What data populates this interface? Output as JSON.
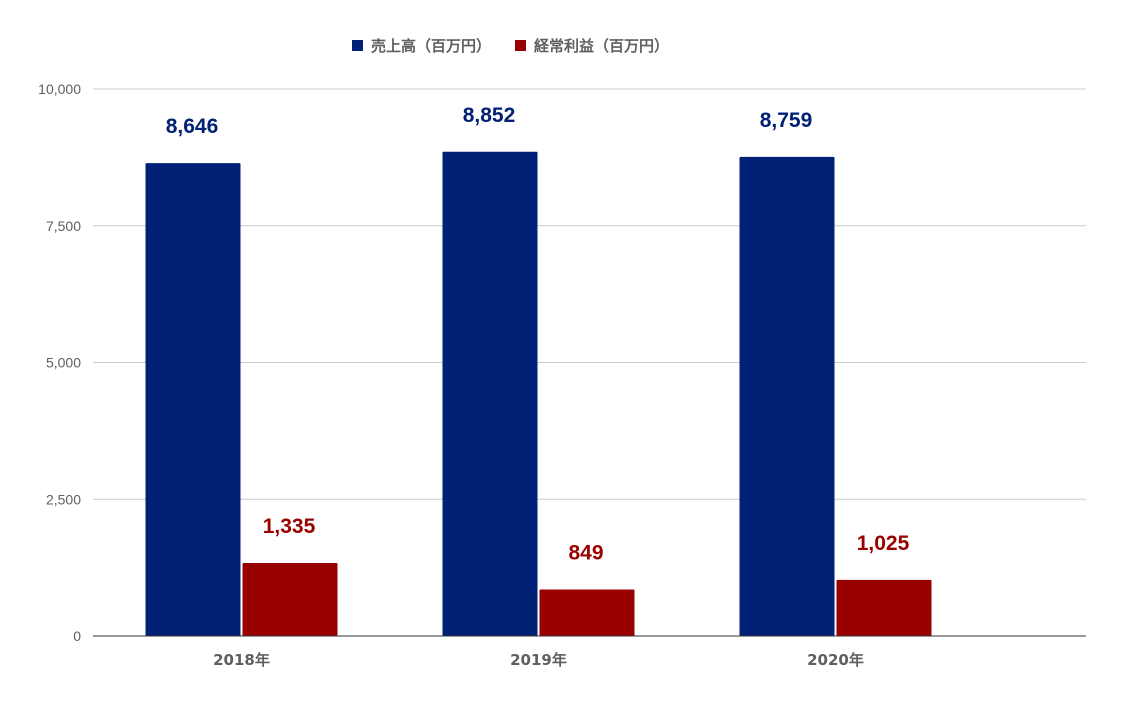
{
  "chart_data": {
    "type": "bar",
    "title": "",
    "xlabel": "",
    "ylabel": "",
    "categories": [
      "2018年",
      "2019年",
      "2020年"
    ],
    "series": [
      {
        "name": "売上高（百万円）",
        "color": "#002175",
        "values": [
          8646,
          8852,
          8759
        ],
        "value_labels": [
          "8,646",
          "8,852",
          "8,759"
        ]
      },
      {
        "name": "経常利益（百万円）",
        "color": "#990000",
        "values": [
          1335,
          849,
          1025
        ],
        "value_labels": [
          "1,335",
          "849",
          "1,025"
        ]
      }
    ],
    "ylim": [
      0,
      10000
    ],
    "yticks": [
      0,
      2500,
      5000,
      7500,
      10000
    ],
    "ytick_labels": [
      "0",
      "2,500",
      "5,000",
      "7,500",
      "10,000"
    ],
    "grid": true,
    "legend_position": "top-center"
  }
}
